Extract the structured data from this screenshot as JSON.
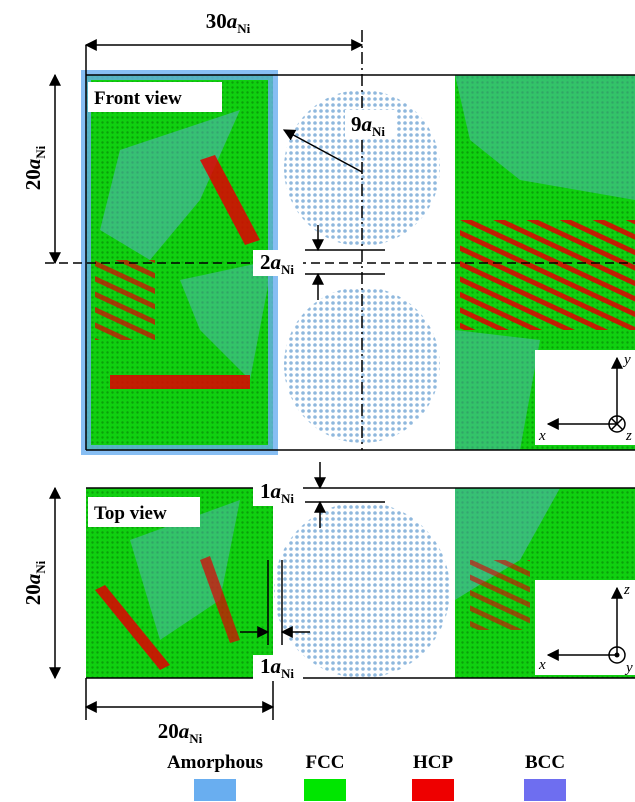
{
  "front_view": {
    "title": "Front view",
    "width_label": {
      "coefficient": "30",
      "symbol": "a",
      "subscript": "Ni"
    },
    "height_label": {
      "coefficient": "20",
      "symbol": "a",
      "subscript": "Ni"
    },
    "radius_label": {
      "coefficient": "9",
      "symbol": "a",
      "subscript": "Ni"
    },
    "gap_label": {
      "coefficient": "2",
      "symbol": "a",
      "subscript": "Ni"
    },
    "axes": {
      "horizontal": "x",
      "vertical": "y",
      "normal": "z"
    }
  },
  "top_view": {
    "title": "Top view",
    "height_label": {
      "coefficient": "20",
      "symbol": "a",
      "subscript": "Ni"
    },
    "gap_label": {
      "coefficient": "1",
      "symbol": "a",
      "subscript": "Ni"
    },
    "side_gap_label": {
      "coefficient": "1",
      "symbol": "a",
      "subscript": "Ni"
    },
    "width_label": {
      "coefficient": "20",
      "symbol": "a",
      "subscript": "Ni"
    },
    "axes": {
      "horizontal": "x",
      "vertical": "z",
      "normal": "y"
    }
  },
  "legend": [
    {
      "name": "Amorphous",
      "color": "#69aef0"
    },
    {
      "name": "FCC",
      "color": "#00e600"
    },
    {
      "name": "HCP",
      "color": "#ee0000"
    },
    {
      "name": "BCC",
      "color": "#6e6ef0"
    }
  ]
}
